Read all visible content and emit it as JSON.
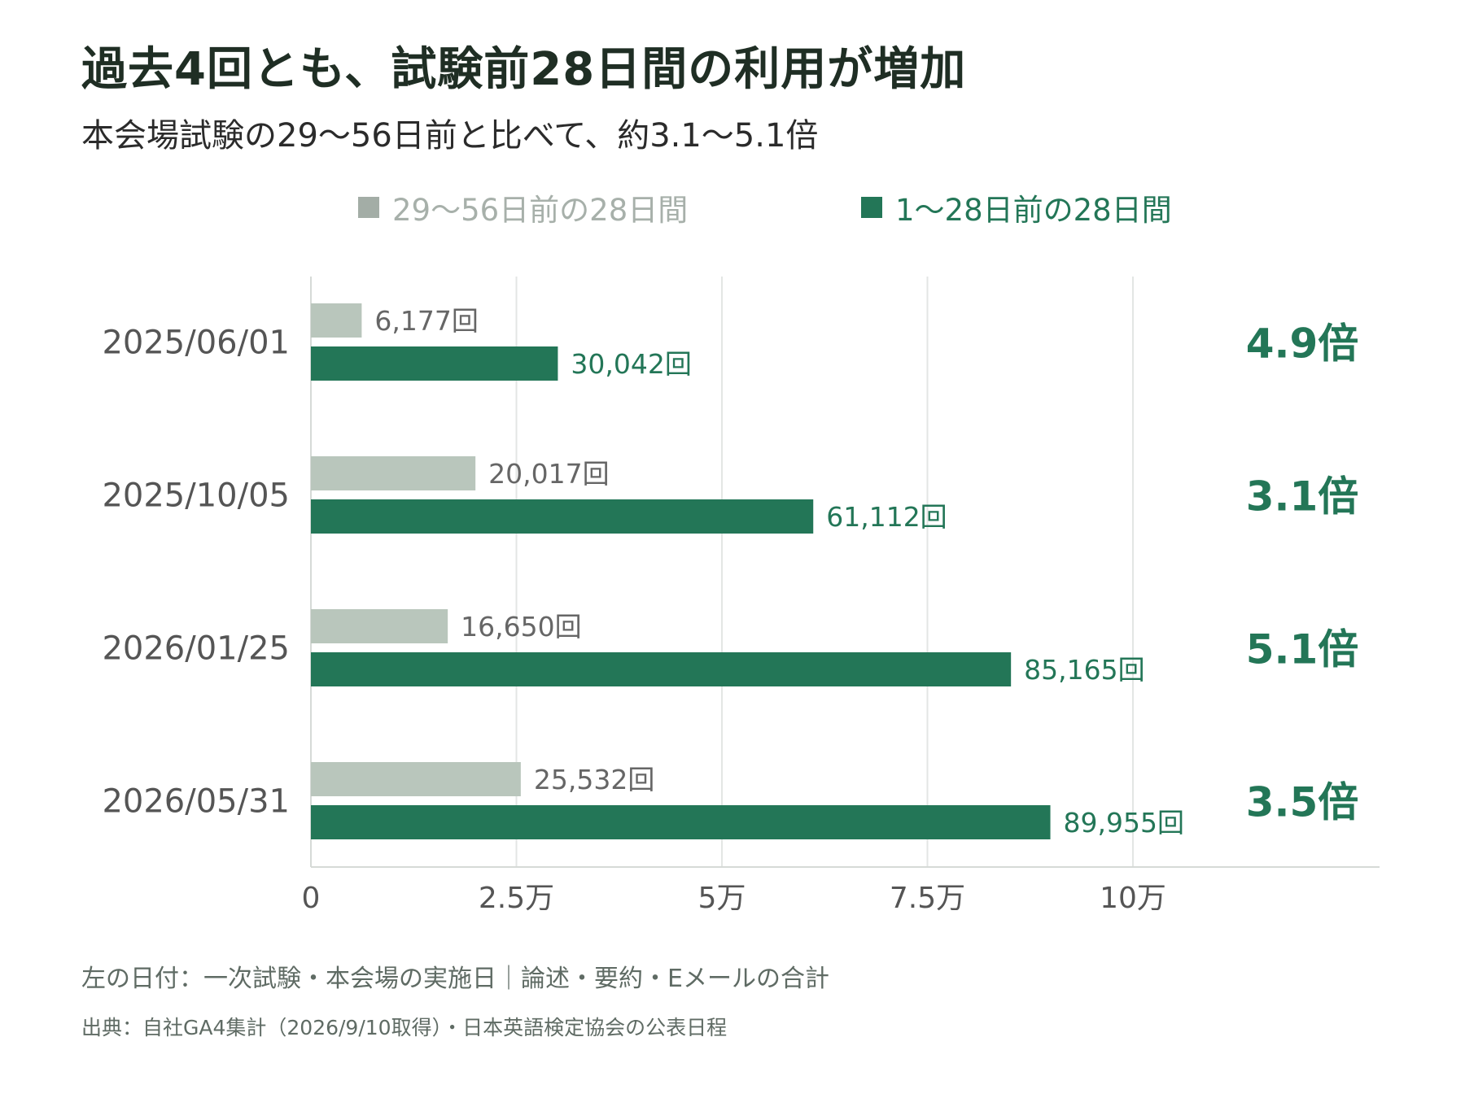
{
  "title": "過去4回とも、試験前28日間の利用が増加",
  "subtitle": "本会場試験の29〜56日前と比べて、約3.1〜5.1倍",
  "colors": {
    "before": "#b9c6bc",
    "after": "#237657",
    "before_legend": "#a3ada6",
    "grid": "#e3e6e4",
    "axis_label": "#555555",
    "ratio": "#237657"
  },
  "chart_data": {
    "type": "bar",
    "orientation": "horizontal",
    "categories": [
      "2025/06/01",
      "2025/10/05",
      "2026/01/25",
      "2026/05/31"
    ],
    "series": [
      {
        "name": "29〜56日前の28日間",
        "values": [
          6177,
          20017,
          16650,
          25532
        ],
        "labels": [
          "6,177回",
          "20,017回",
          "16,650回",
          "25,532回"
        ]
      },
      {
        "name": "1〜28日前の28日間",
        "values": [
          30042,
          61112,
          85165,
          89955
        ],
        "labels": [
          "30,042回",
          "61,112回",
          "85,165回",
          "89,955回"
        ]
      }
    ],
    "ratios": [
      "4.9倍",
      "3.1倍",
      "5.1倍",
      "3.5倍"
    ],
    "xticks": [
      0,
      25000,
      50000,
      75000,
      100000
    ],
    "xtick_labels": [
      "0",
      "2.5万",
      "5万",
      "7.5万",
      "10万"
    ],
    "xlim": [
      0,
      130000
    ],
    "grid": true,
    "legend_position": "top"
  },
  "notes": [
    "左の日付：一次試験・本会場の実施日｜論述・要約・Eメールの合計",
    "出典：自社GA4集計（2026/9/10取得）・日本英語検定協会の公表日程"
  ]
}
